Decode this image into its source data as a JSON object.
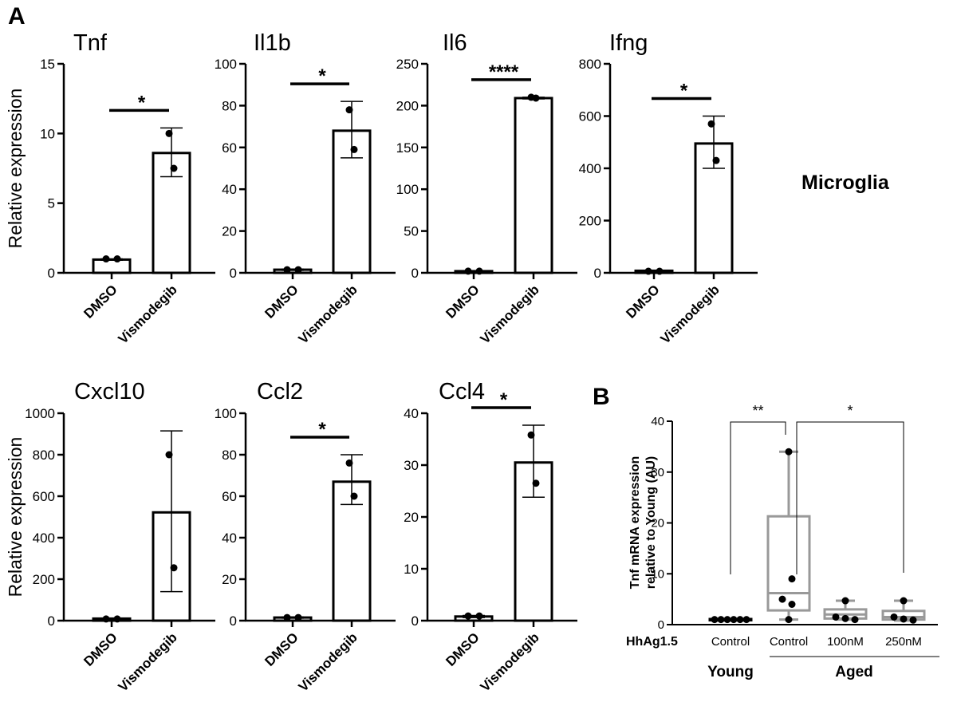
{
  "figure": {
    "panel_a_label": "A",
    "panel_b_label": "B",
    "cell_type_label": "Microglia"
  },
  "chart_data": [
    {
      "type": "bar",
      "panel": "A",
      "title": "Tnf",
      "ylabel": "Relative expression",
      "categories": [
        "DMSO",
        "Vismodegib"
      ],
      "values": [
        0.95,
        8.6
      ],
      "error": [
        [
          0.9,
          1.0
        ],
        [
          6.9,
          10.4
        ]
      ],
      "points": [
        [
          1.0,
          1.0
        ],
        [
          7.5,
          10.0
        ]
      ],
      "ylim": [
        0,
        15
      ],
      "yticks": [
        "0",
        "5",
        "10",
        "15"
      ],
      "significance": "*"
    },
    {
      "type": "bar",
      "panel": "A",
      "title": "Il1b",
      "ylabel": "",
      "categories": [
        "DMSO",
        "Vismodegib"
      ],
      "values": [
        1.5,
        68
      ],
      "error": [
        [
          1.2,
          1.8
        ],
        [
          55,
          82
        ]
      ],
      "points": [
        [
          1.5,
          1.5
        ],
        [
          59,
          78
        ]
      ],
      "ylim": [
        0,
        100
      ],
      "yticks": [
        "0",
        "20",
        "40",
        "60",
        "80",
        "100"
      ],
      "significance": "*"
    },
    {
      "type": "bar",
      "panel": "A",
      "title": "Il6",
      "ylabel": "",
      "categories": [
        "DMSO",
        "Vismodegib"
      ],
      "values": [
        2,
        209
      ],
      "error": [
        [
          1.5,
          2.5
        ],
        [
          208,
          210
        ]
      ],
      "points": [
        [
          2,
          2
        ],
        [
          209,
          210
        ]
      ],
      "ylim": [
        0,
        250
      ],
      "yticks": [
        "0",
        "50",
        "100",
        "150",
        "200",
        "250"
      ],
      "significance": "****"
    },
    {
      "type": "bar",
      "panel": "A",
      "title": "Ifng",
      "ylabel": "",
      "categories": [
        "DMSO",
        "Vismodegib"
      ],
      "values": [
        8,
        495
      ],
      "error": [
        [
          6,
          10
        ],
        [
          400,
          600
        ]
      ],
      "points": [
        [
          6,
          6
        ],
        [
          430,
          570
        ]
      ],
      "ylim": [
        0,
        800
      ],
      "yticks": [
        "0",
        "200",
        "400",
        "600",
        "800"
      ],
      "significance": "*"
    },
    {
      "type": "bar",
      "panel": "A",
      "title": "Cxcl10",
      "ylabel": "Relative expression",
      "categories": [
        "DMSO",
        "Vismodegib"
      ],
      "values": [
        10,
        522
      ],
      "error": [
        [
          8,
          12
        ],
        [
          140,
          915
        ]
      ],
      "points": [
        [
          8,
          8
        ],
        [
          255,
          800
        ]
      ],
      "ylim": [
        0,
        1000
      ],
      "yticks": [
        "0",
        "200",
        "400",
        "600",
        "800",
        "1000"
      ],
      "significance": ""
    },
    {
      "type": "bar",
      "panel": "A",
      "title": "Ccl2",
      "ylabel": "",
      "categories": [
        "DMSO",
        "Vismodegib"
      ],
      "values": [
        1.5,
        67
      ],
      "error": [
        [
          1.2,
          1.8
        ],
        [
          56,
          80
        ]
      ],
      "points": [
        [
          1.5,
          1.5
        ],
        [
          60,
          76
        ]
      ],
      "ylim": [
        0,
        100
      ],
      "yticks": [
        "0",
        "20",
        "40",
        "60",
        "80",
        "100"
      ],
      "significance": "*"
    },
    {
      "type": "bar",
      "panel": "A",
      "title": "Ccl4",
      "ylabel": "",
      "categories": [
        "DMSO",
        "Vismodegib"
      ],
      "values": [
        0.8,
        30.5
      ],
      "error": [
        [
          0.6,
          1.0
        ],
        [
          23.8,
          37.7
        ]
      ],
      "points": [
        [
          0.9,
          0.9
        ],
        [
          26.5,
          35.8
        ]
      ],
      "ylim": [
        0,
        40
      ],
      "yticks": [
        "0",
        "10",
        "20",
        "30",
        "40"
      ],
      "significance": "*"
    },
    {
      "type": "box",
      "panel": "B",
      "title": "",
      "ylabel": "Tnf mRNA expression relative to Young (AU)",
      "ylabel_lines": [
        "Tnf mRNA expression",
        "relative to Young (AU)"
      ],
      "row_label": "HhAg1.5",
      "categories": [
        "Control",
        "Control",
        "100nM",
        "250nM"
      ],
      "groups": [
        {
          "label": "Young",
          "span": [
            0,
            0
          ]
        },
        {
          "label": "Aged",
          "span": [
            1,
            3
          ]
        }
      ],
      "ylim": [
        0,
        40
      ],
      "yticks": [
        "0",
        "10",
        "20",
        "30",
        "40"
      ],
      "boxes": [
        {
          "min": 1.0,
          "q1": 1.0,
          "median": 1.0,
          "q3": 1.1,
          "max": 1.1,
          "color": "#000000",
          "points": [
            1,
            1,
            1,
            1,
            1,
            1
          ]
        },
        {
          "min": 1.0,
          "q1": 2.8,
          "median": 6.2,
          "q3": 21.3,
          "max": 34.0,
          "color": "#999999",
          "points": [
            34,
            9,
            5,
            4,
            1
          ]
        },
        {
          "min": 1.0,
          "q1": 1.2,
          "median": 2.0,
          "q3": 3.0,
          "max": 4.7,
          "color": "#999999",
          "points": [
            4.7,
            1.5,
            1.2,
            1.0
          ]
        },
        {
          "min": 0.8,
          "q1": 1.0,
          "median": 1.5,
          "q3": 2.7,
          "max": 4.7,
          "color": "#999999",
          "points": [
            4.7,
            1.5,
            1.1,
            0.9
          ]
        }
      ],
      "comparisons": [
        {
          "from": 0,
          "to": 1,
          "label": "**"
        },
        {
          "from": 1,
          "to": 3,
          "label": "*"
        }
      ]
    }
  ]
}
